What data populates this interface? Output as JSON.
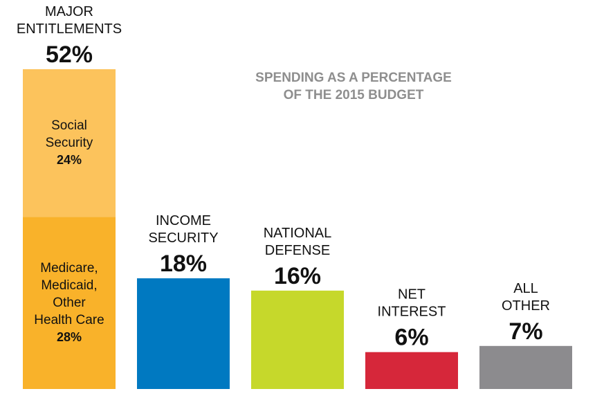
{
  "chart_data": {
    "type": "bar",
    "title": "SPENDING AS A PERCENTAGE OF THE 2015 BUDGET",
    "title_lines": [
      "SPENDING AS A PERCENTAGE",
      "OF THE 2015 BUDGET"
    ],
    "unit": "%",
    "ylim": [
      0,
      52
    ],
    "grid": false,
    "legend": "none",
    "categories": [
      {
        "id": "major-entitlements",
        "label_lines": [
          "MAJOR",
          "ENTITLEMENTS"
        ],
        "value": 52,
        "value_label": "52%",
        "segments": [
          {
            "id": "medicare-medicaid",
            "label_lines": [
              "Medicare,",
              "Medicaid,",
              "Other",
              "Health Care"
            ],
            "value": 28,
            "value_label": "28%",
            "color": "#F9B22A"
          },
          {
            "id": "social-security",
            "label_lines": [
              "Social",
              "Security"
            ],
            "value": 24,
            "value_label": "24%",
            "color": "#FCC35C"
          }
        ]
      },
      {
        "id": "income-security",
        "label_lines": [
          "INCOME",
          "SECURITY"
        ],
        "value": 18,
        "value_label": "18%",
        "color": "#0079C1"
      },
      {
        "id": "national-defense",
        "label_lines": [
          "NATIONAL",
          "DEFENSE"
        ],
        "value": 16,
        "value_label": "16%",
        "color": "#C6D82B"
      },
      {
        "id": "net-interest",
        "label_lines": [
          "NET",
          "INTEREST"
        ],
        "value": 6,
        "value_label": "6%",
        "color": "#D6273A"
      },
      {
        "id": "all-other",
        "label_lines": [
          "ALL",
          "OTHER"
        ],
        "value": 7,
        "value_label": "7%",
        "color": "#8C8B8E"
      }
    ],
    "colors": {
      "label_text": "#111111",
      "title_text": "#8E8E8E"
    }
  }
}
